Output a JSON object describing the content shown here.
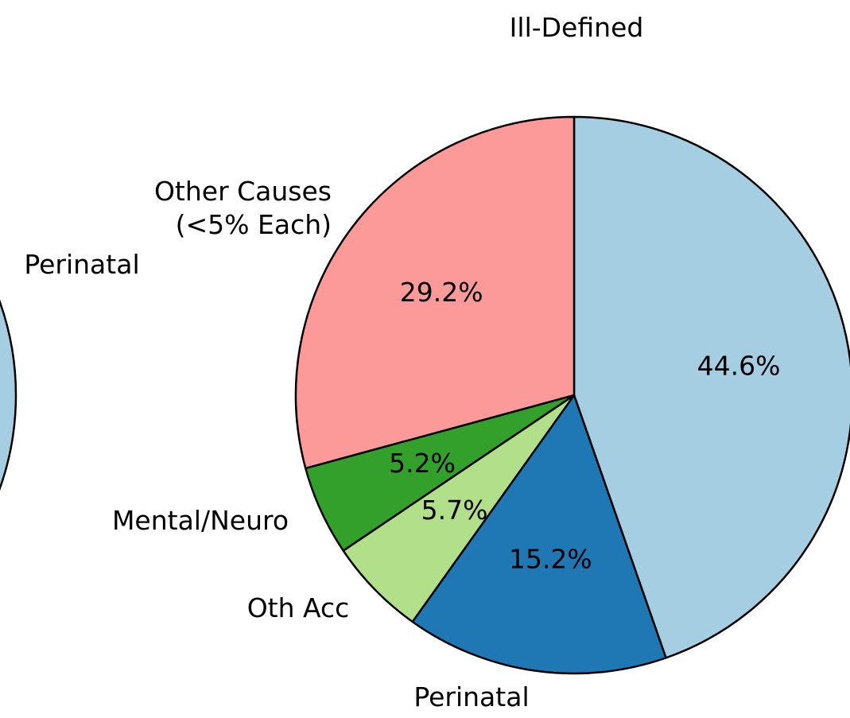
{
  "chart_data": {
    "type": "pie",
    "categories": [
      "Ill-Defined",
      "Perinatal",
      "Oth Acc",
      "Mental/Neuro",
      "Other Causes\n(<5% Each)"
    ],
    "values": [
      44.6,
      15.2,
      5.7,
      5.2,
      29.2
    ],
    "value_labels": [
      "44.6%",
      "15.2%",
      "5.7%",
      "5.2%",
      "29.2%"
    ],
    "colors": [
      "#a6cee3",
      "#1f78b4",
      "#b2df8a",
      "#33a02c",
      "#fb9a99"
    ],
    "start_angle": 90,
    "direction": "clockwise"
  },
  "left_chart_fragment": {
    "label": "Perinatal"
  }
}
